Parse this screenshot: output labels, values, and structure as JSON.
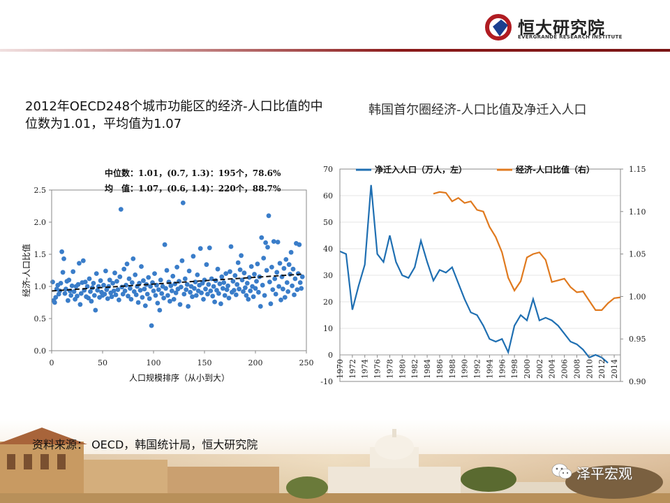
{
  "header": {
    "logo_text": "恒大研究院",
    "logo_sub": "EVERGRANDE RESEARCH INSTITUTE",
    "bar_color": "#8b1a1a"
  },
  "left_title": "2012年OECD248个城市功能区的经济-人口比值的中位数为1.01，平均值为1.07",
  "right_title": "韩国首尔圈经济-人口比值及净迁入人口",
  "source": "资料来源： OECD，韩国统计局，恒大研究院",
  "watermark": "泽平宏观",
  "chart_data": [
    {
      "type": "scatter",
      "xlabel": "人口规模排序（从小到大）",
      "ylabel": "经济-人口比值",
      "xlim": [
        0,
        250
      ],
      "ylim": [
        0,
        2.5
      ],
      "xticks": [
        0,
        50,
        100,
        150,
        200,
        250
      ],
      "yticks": [
        "0.0",
        "0.5",
        "1.0",
        "1.5",
        "2.0",
        "2.5"
      ],
      "annotations": [
        "中位数：1.01，(0.7, 1.3)：195个，78.6%",
        "均　值：1.07，(0.6, 1.4)：220个，88.7%"
      ],
      "color": "#3a7dc9",
      "trend": {
        "start": [
          0,
          0.93
        ],
        "end": [
          245,
          1.19
        ],
        "style": "dashed"
      },
      "points": [
        [
          1,
          1.07
        ],
        [
          2,
          0.78
        ],
        [
          3,
          0.75
        ],
        [
          4,
          0.83
        ],
        [
          5,
          0.96
        ],
        [
          6,
          1.02
        ],
        [
          7,
          0.88
        ],
        [
          8,
          0.93
        ],
        [
          9,
          1.05
        ],
        [
          10,
          1.54
        ],
        [
          11,
          1.22
        ],
        [
          12,
          1.43
        ],
        [
          13,
          0.89
        ],
        [
          14,
          0.96
        ],
        [
          15,
          1.08
        ],
        [
          16,
          0.78
        ],
        [
          17,
          1.1
        ],
        [
          18,
          0.93
        ],
        [
          19,
          0.86
        ],
        [
          20,
          1.01
        ],
        [
          21,
          1.23
        ],
        [
          22,
          0.92
        ],
        [
          23,
          0.8
        ],
        [
          24,
          1.0
        ],
        [
          25,
          0.85
        ],
        [
          26,
          1.03
        ],
        [
          27,
          1.36
        ],
        [
          28,
          0.72
        ],
        [
          29,
          0.89
        ],
        [
          30,
          1.06
        ],
        [
          31,
          1.4
        ],
        [
          32,
          0.94
        ],
        [
          33,
          1.07
        ],
        [
          34,
          0.84
        ],
        [
          35,
          1.0
        ],
        [
          36,
          0.82
        ],
        [
          37,
          1.12
        ],
        [
          38,
          0.92
        ],
        [
          39,
          0.77
        ],
        [
          40,
          0.98
        ],
        [
          41,
          1.05
        ],
        [
          42,
          0.86
        ],
        [
          43,
          0.63
        ],
        [
          44,
          1.2
        ],
        [
          45,
          0.94
        ],
        [
          46,
          1.0
        ],
        [
          47,
          0.83
        ],
        [
          48,
          1.09
        ],
        [
          49,
          0.91
        ],
        [
          50,
          0.86
        ],
        [
          51,
          1.02
        ],
        [
          52,
          0.88
        ],
        [
          53,
          1.24
        ],
        [
          54,
          0.95
        ],
        [
          55,
          0.81
        ],
        [
          56,
          1.0
        ],
        [
          57,
          1.1
        ],
        [
          58,
          0.9
        ],
        [
          59,
          0.84
        ],
        [
          60,
          1.05
        ],
        [
          61,
          0.93
        ],
        [
          62,
          1.21
        ],
        [
          63,
          0.87
        ],
        [
          64,
          1.08
        ],
        [
          65,
          0.95
        ],
        [
          66,
          0.79
        ],
        [
          67,
          1.15
        ],
        [
          68,
          2.2
        ],
        [
          69,
          0.99
        ],
        [
          70,
          0.88
        ],
        [
          71,
          1.27
        ],
        [
          72,
          0.93
        ],
        [
          73,
          1.02
        ],
        [
          74,
          1.35
        ],
        [
          75,
          0.85
        ],
        [
          76,
          1.12
        ],
        [
          77,
          0.97
        ],
        [
          78,
          0.8
        ],
        [
          79,
          1.06
        ],
        [
          80,
          1.43
        ],
        [
          81,
          0.92
        ],
        [
          82,
          1.18
        ],
        [
          83,
          0.87
        ],
        [
          84,
          1.0
        ],
        [
          85,
          0.75
        ],
        [
          86,
          1.05
        ],
        [
          87,
          0.94
        ],
        [
          88,
          1.31
        ],
        [
          89,
          0.83
        ],
        [
          90,
          1.09
        ],
        [
          91,
          0.96
        ],
        [
          92,
          0.7
        ],
        [
          93,
          1.03
        ],
        [
          94,
          0.88
        ],
        [
          95,
          1.14
        ],
        [
          96,
          0.81
        ],
        [
          97,
          1.0
        ],
        [
          98,
          0.39
        ],
        [
          99,
          1.06
        ],
        [
          100,
          0.93
        ],
        [
          101,
          1.2
        ],
        [
          102,
          0.86
        ],
        [
          103,
          1.02
        ],
        [
          104,
          0.74
        ],
        [
          105,
          0.95
        ],
        [
          106,
          0.63
        ],
        [
          107,
          1.1
        ],
        [
          108,
          0.89
        ],
        [
          109,
          1.0
        ],
        [
          110,
          0.82
        ],
        [
          111,
          1.65
        ],
        [
          112,
          0.97
        ],
        [
          113,
          1.25
        ],
        [
          114,
          0.86
        ],
        [
          115,
          1.07
        ],
        [
          116,
          0.77
        ],
        [
          117,
          1.01
        ],
        [
          118,
          0.93
        ],
        [
          119,
          1.16
        ],
        [
          120,
          0.8
        ],
        [
          121,
          1.04
        ],
        [
          122,
          0.9
        ],
        [
          123,
          1.3
        ],
        [
          124,
          0.96
        ],
        [
          125,
          1.08
        ],
        [
          126,
          0.72
        ],
        [
          127,
          0.99
        ],
        [
          128,
          1.4
        ],
        [
          129,
          2.3
        ],
        [
          130,
          0.88
        ],
        [
          131,
          1.12
        ],
        [
          132,
          0.95
        ],
        [
          133,
          1.03
        ],
        [
          134,
          0.69
        ],
        [
          135,
          1.24
        ],
        [
          136,
          0.91
        ],
        [
          137,
          1.0
        ],
        [
          138,
          0.84
        ],
        [
          139,
          1.47
        ],
        [
          140,
          0.97
        ],
        [
          141,
          1.07
        ],
        [
          142,
          0.86
        ],
        [
          143,
          1.18
        ],
        [
          144,
          0.93
        ],
        [
          145,
          1.02
        ],
        [
          146,
          1.59
        ],
        [
          147,
          0.9
        ],
        [
          148,
          1.05
        ],
        [
          149,
          0.8
        ],
        [
          150,
          1.1
        ],
        [
          151,
          0.96
        ],
        [
          152,
          1.34
        ],
        [
          153,
          0.88
        ],
        [
          154,
          1.03
        ],
        [
          155,
          1.6
        ],
        [
          156,
          0.93
        ],
        [
          157,
          1.12
        ],
        [
          158,
          0.85
        ],
        [
          159,
          1.0
        ],
        [
          160,
          0.76
        ],
        [
          161,
          1.09
        ],
        [
          162,
          0.94
        ],
        [
          163,
          1.27
        ],
        [
          164,
          0.89
        ],
        [
          165,
          1.04
        ],
        [
          166,
          0.73
        ],
        [
          167,
          1.15
        ],
        [
          168,
          0.97
        ],
        [
          169,
          1.06
        ],
        [
          170,
          0.86
        ],
        [
          171,
          1.2
        ],
        [
          172,
          0.95
        ],
        [
          173,
          1.01
        ],
        [
          174,
          0.82
        ],
        [
          175,
          1.23
        ],
        [
          176,
          1.62
        ],
        [
          177,
          0.91
        ],
        [
          178,
          1.08
        ],
        [
          179,
          0.94
        ],
        [
          180,
          1.17
        ],
        [
          181,
          0.87
        ],
        [
          182,
          1.03
        ],
        [
          183,
          1.37
        ],
        [
          184,
          0.96
        ],
        [
          185,
          1.26
        ],
        [
          186,
          1.48
        ],
        [
          187,
          1.1
        ],
        [
          188,
          0.92
        ],
        [
          189,
          1.21
        ],
        [
          190,
          0.98
        ],
        [
          191,
          0.86
        ],
        [
          192,
          1.05
        ],
        [
          193,
          0.8
        ],
        [
          194,
          1.14
        ],
        [
          195,
          0.93
        ],
        [
          196,
          1.31
        ],
        [
          197,
          1.0
        ],
        [
          198,
          0.84
        ],
        [
          199,
          1.19
        ],
        [
          200,
          0.97
        ],
        [
          201,
          1.08
        ],
        [
          202,
          1.35
        ],
        [
          203,
          0.91
        ],
        [
          204,
          1.15
        ],
        [
          205,
          0.69
        ],
        [
          206,
          1.76
        ],
        [
          207,
          1.02
        ],
        [
          208,
          1.44
        ],
        [
          209,
          0.86
        ],
        [
          210,
          1.68
        ],
        [
          211,
          1.25
        ],
        [
          212,
          1.61
        ],
        [
          213,
          2.1
        ],
        [
          214,
          1.07
        ],
        [
          215,
          0.73
        ],
        [
          216,
          1.3
        ],
        [
          217,
          0.95
        ],
        [
          218,
          1.7
        ],
        [
          219,
          1.12
        ],
        [
          220,
          0.88
        ],
        [
          221,
          1.22
        ],
        [
          222,
          1.69
        ],
        [
          223,
          1.0
        ],
        [
          224,
          1.36
        ],
        [
          225,
          0.79
        ],
        [
          226,
          1.15
        ],
        [
          227,
          0.96
        ],
        [
          228,
          1.28
        ],
        [
          229,
          0.83
        ],
        [
          230,
          1.42
        ],
        [
          231,
          1.06
        ],
        [
          232,
          0.92
        ],
        [
          233,
          1.34
        ],
        [
          234,
          1.19
        ],
        [
          235,
          1.53
        ],
        [
          236,
          1.01
        ],
        [
          237,
          1.27
        ],
        [
          238,
          0.87
        ],
        [
          239,
          1.12
        ],
        [
          240,
          1.67
        ],
        [
          241,
          0.95
        ],
        [
          242,
          1.2
        ],
        [
          243,
          1.65
        ],
        [
          244,
          1.06
        ],
        [
          245,
          0.97
        ],
        [
          246,
          1.15
        ]
      ]
    },
    {
      "type": "line",
      "x": [
        1970,
        1971,
        1972,
        1973,
        1974,
        1975,
        1976,
        1977,
        1978,
        1979,
        1980,
        1981,
        1982,
        1983,
        1984,
        1985,
        1986,
        1987,
        1988,
        1989,
        1990,
        1991,
        1992,
        1993,
        1994,
        1995,
        1996,
        1997,
        1998,
        1999,
        2000,
        2001,
        2002,
        2003,
        2004,
        2005,
        2006,
        2007,
        2008,
        2009,
        2010,
        2011,
        2012,
        2013,
        2014,
        2015
      ],
      "xticks": [
        "1970",
        "1972",
        "1974",
        "1976",
        "1978",
        "1980",
        "1982",
        "1984",
        "1986",
        "1988",
        "1990",
        "1992",
        "1994",
        "1996",
        "1998",
        "2000",
        "2002",
        "2004",
        "2006",
        "2008",
        "2010",
        "2012",
        "2014"
      ],
      "y_left_lim": [
        -10,
        70
      ],
      "y_left_ticks": [
        "-10",
        "0",
        "10",
        "20",
        "30",
        "40",
        "50",
        "60",
        "70"
      ],
      "y_right_lim": [
        0.9,
        1.15
      ],
      "y_right_ticks": [
        "0.90",
        "0.95",
        "1.00",
        "1.05",
        "1.10",
        "1.15"
      ],
      "series": [
        {
          "name": "净迁入人口（万人，左）",
          "axis": "left",
          "color": "#1f6fb2",
          "values": [
            39,
            38,
            17,
            26,
            34,
            64,
            38,
            35,
            45,
            35,
            30,
            29,
            33,
            43,
            35,
            28,
            32,
            31,
            33,
            27,
            21,
            16,
            15,
            11,
            6,
            5,
            6,
            1,
            11,
            15,
            13,
            21,
            13,
            14,
            13,
            11,
            8,
            5,
            4,
            2,
            -1,
            0,
            -1,
            -3,
            null,
            null
          ]
        },
        {
          "name": "经济-人口比值（右）",
          "axis": "right",
          "color": "#e07a1f",
          "values": [
            null,
            null,
            null,
            null,
            null,
            null,
            null,
            null,
            null,
            null,
            null,
            null,
            null,
            null,
            null,
            1.121,
            1.123,
            1.122,
            1.112,
            1.116,
            1.11,
            1.112,
            1.102,
            1.1,
            1.082,
            1.07,
            1.052,
            1.022,
            1.007,
            1.018,
            1.046,
            1.05,
            1.052,
            1.043,
            1.017,
            1.019,
            1.021,
            1.011,
            1.005,
            1.006,
            0.995,
            0.984,
            0.984,
            0.992,
            0.998,
            0.999
          ]
        }
      ]
    }
  ]
}
